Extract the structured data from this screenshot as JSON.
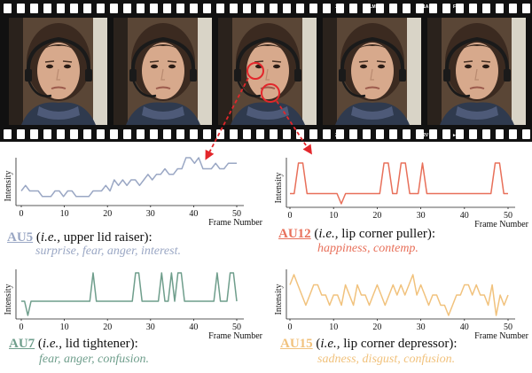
{
  "film_edge": {
    "mark_1a": "1A",
    "mark_film": "FILM",
    "mark_2": "2",
    "mark_2v": "2V",
    "mark_arrow3": "►3",
    "mark_arrow": "►"
  },
  "charts": [
    {
      "id": "au5",
      "color": "#9aa7c4",
      "y_label": "Intensity",
      "x_label": "Frame Number",
      "x_ticks": [
        "0",
        "10",
        "20",
        "30",
        "40",
        "50"
      ],
      "values": [
        2,
        3,
        2,
        2,
        2,
        1,
        1,
        1,
        2,
        2,
        1,
        2,
        2,
        1,
        1,
        1,
        1,
        2,
        2,
        2,
        3,
        2,
        4,
        3,
        4,
        3,
        4,
        4,
        3,
        4,
        5,
        4,
        5,
        5,
        6,
        5,
        5,
        6,
        6,
        8,
        8,
        7,
        8,
        6,
        6,
        6,
        7,
        6,
        6,
        7,
        7,
        7
      ]
    },
    {
      "id": "au12",
      "color": "#e8705a",
      "y_label": "Intensity",
      "x_label": "Frame Number",
      "x_ticks": [
        "0",
        "10",
        "20",
        "30",
        "40",
        "50"
      ],
      "values": [
        1,
        1,
        4,
        4,
        1,
        1,
        1,
        1,
        1,
        1,
        1,
        1,
        0,
        1,
        1,
        1,
        1,
        1,
        1,
        1,
        1,
        1,
        4,
        4,
        1,
        1,
        4,
        4,
        1,
        1,
        1,
        4,
        1,
        1,
        1,
        1,
        1,
        1,
        1,
        1,
        1,
        1,
        1,
        1,
        1,
        1,
        1,
        1,
        4,
        4,
        1,
        1
      ]
    },
    {
      "id": "au7",
      "color": "#6f9e8c",
      "y_label": "Intensity",
      "x_label": "Frame Number",
      "x_ticks": [
        "0",
        "10",
        "20",
        "30",
        "40",
        "50"
      ],
      "values": [
        1,
        1,
        0,
        1,
        1,
        1,
        1,
        1,
        1,
        1,
        1,
        1,
        1,
        1,
        1,
        1,
        1,
        1,
        1,
        1,
        1,
        1,
        3,
        1,
        1,
        1,
        1,
        1,
        1,
        1,
        1,
        1,
        1,
        1,
        1,
        3,
        3,
        1,
        1,
        1,
        1,
        1,
        1,
        3,
        1,
        1,
        3,
        1,
        3,
        3,
        1,
        1,
        1,
        1,
        1,
        1,
        1,
        1,
        1,
        1,
        3,
        1,
        1,
        1,
        3,
        3,
        1
      ]
    },
    {
      "id": "au15",
      "color": "#f1c27d",
      "y_label": "Intensity",
      "x_label": "Frame Number",
      "x_ticks": [
        "0",
        "10",
        "20",
        "30",
        "40",
        "50"
      ],
      "values": [
        3,
        4,
        3,
        2,
        1,
        2,
        3,
        3,
        2,
        2,
        1,
        2,
        2,
        1,
        3,
        2,
        1,
        3,
        2,
        2,
        1,
        2,
        3,
        2,
        1,
        2,
        3,
        2,
        3,
        2,
        3,
        4,
        2,
        3,
        2,
        1,
        2,
        2,
        1,
        1,
        0,
        1,
        2,
        2,
        3,
        3,
        2,
        3,
        2,
        2,
        1,
        3,
        0,
        2,
        1,
        2
      ]
    }
  ],
  "captions": {
    "au5": {
      "code": "AU5",
      "ie": "i.e.,",
      "desc": " upper lid raiser):",
      "emotions": "surprise, fear, anger, interest."
    },
    "au12": {
      "code": "AU12",
      "ie": "i.e.,",
      "desc": " lip corner puller):",
      "emotions": "happiness, contemp."
    },
    "au7": {
      "code": "AU7",
      "ie": "i.e.,",
      "desc": " lid tightener):",
      "emotions": "fear, anger, confusion."
    },
    "au15": {
      "code": "AU15",
      "ie": "i.e.,",
      "desc": " lip corner depressor):",
      "emotions": "sadness, disgust, confusion."
    }
  },
  "colors": {
    "au5": "#9aa7c4",
    "au12": "#e8705a",
    "au7": "#6f9e8c",
    "au15": "#f1c27d",
    "callout": "#e3262b",
    "film": "#111111"
  }
}
